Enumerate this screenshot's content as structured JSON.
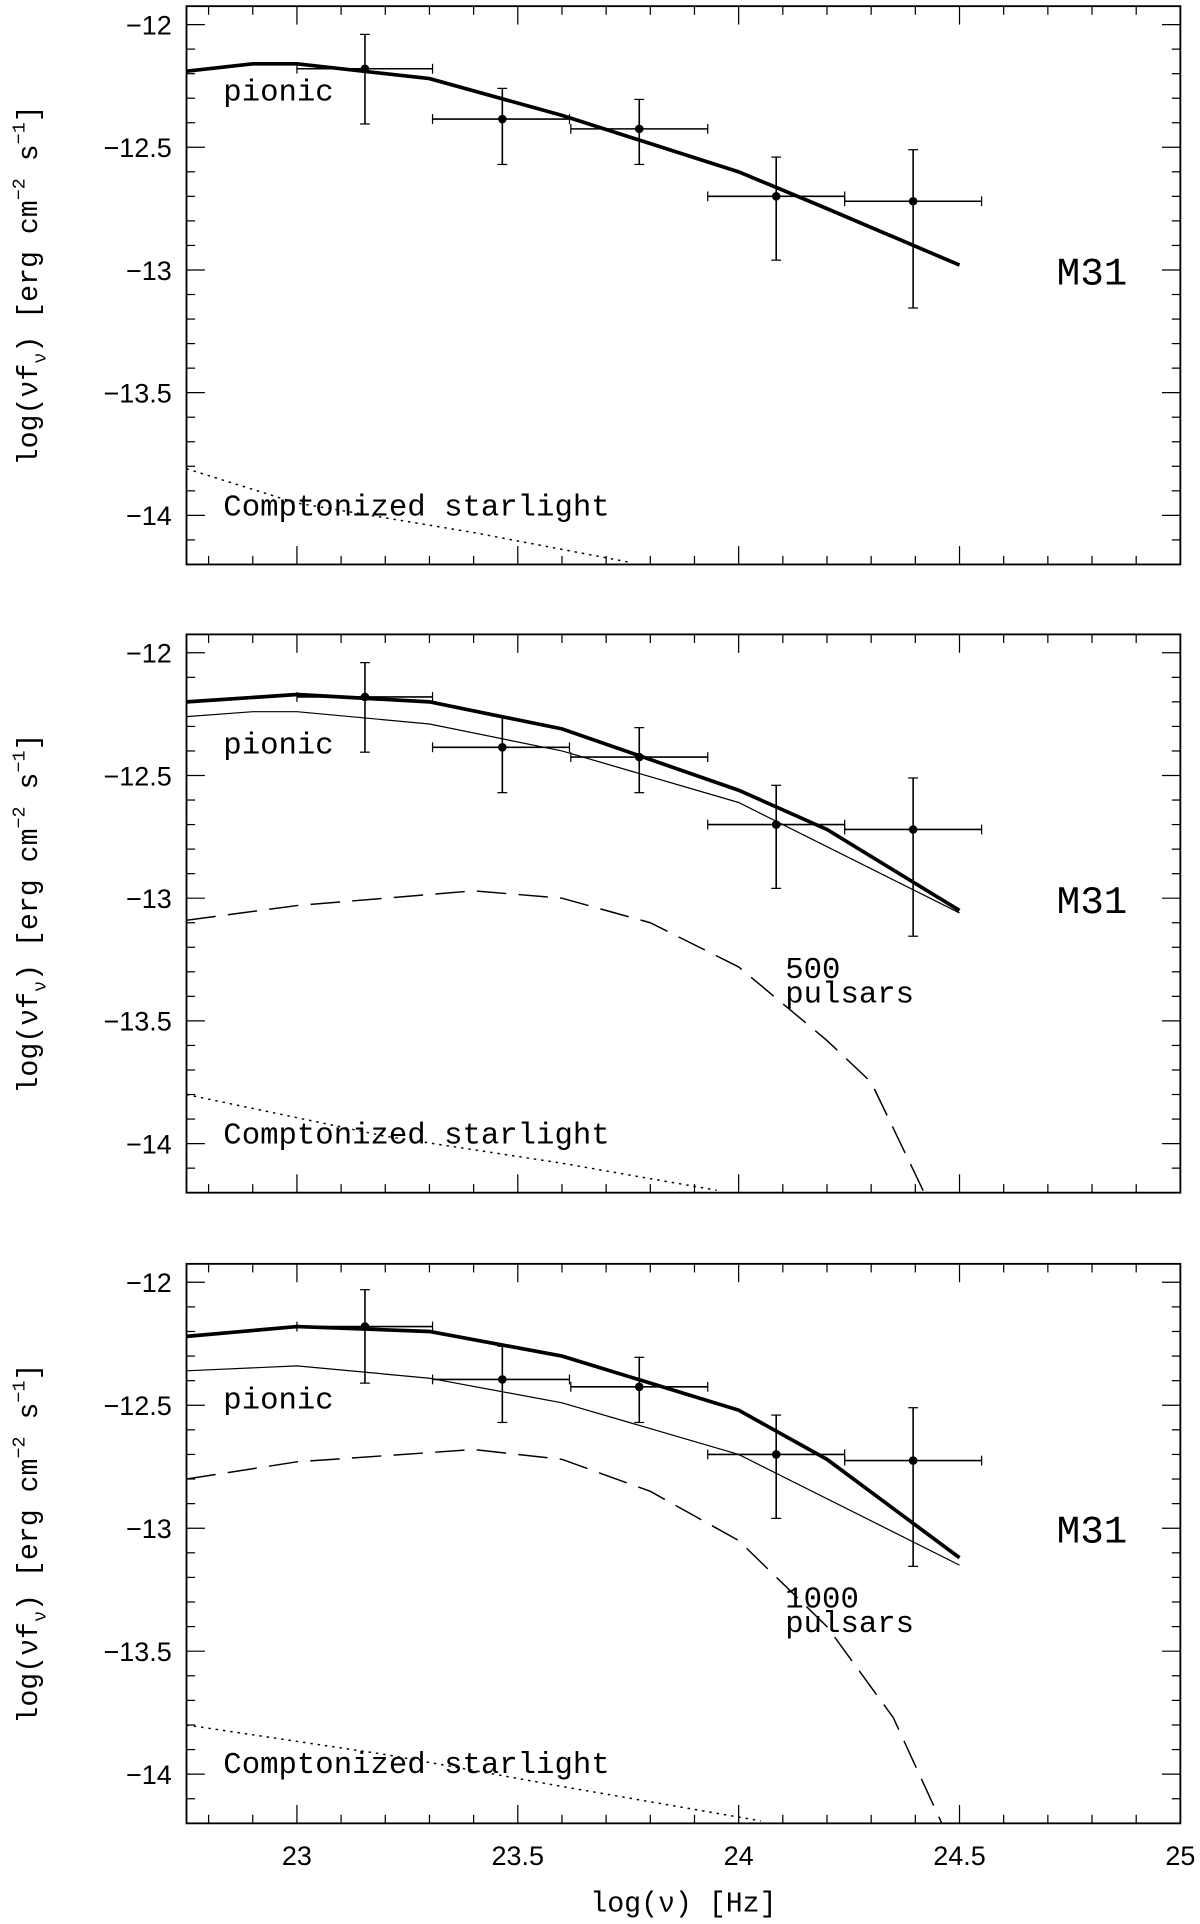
{
  "chart_data": [
    {
      "type": "line",
      "xlim": [
        22.75,
        25
      ],
      "ylim": [
        -14.2,
        -11.925
      ],
      "xticks": [
        23,
        23.5,
        24,
        24.5,
        25
      ],
      "xminorticks": [
        22.8,
        22.9,
        23.1,
        23.2,
        23.3,
        23.4,
        23.6,
        23.7,
        23.8,
        23.9,
        24.1,
        24.2,
        24.3,
        24.4,
        24.6,
        24.7,
        24.8,
        24.9
      ],
      "yticks": [
        {
          "value": -12,
          "label": "−12"
        },
        {
          "value": -12.5,
          "label": "−12.5"
        },
        {
          "value": -13,
          "label": "−13"
        },
        {
          "value": -13.5,
          "label": "−13.5"
        },
        {
          "value": -14,
          "label": "−14"
        }
      ],
      "yminorticks": [
        -12.1,
        -12.2,
        -12.3,
        -12.4,
        -12.6,
        -12.7,
        -12.8,
        -12.9,
        -13.1,
        -13.2,
        -13.3,
        -13.4,
        -13.6,
        -13.7,
        -13.8,
        -13.9,
        -14.1
      ],
      "ylabel": [
        "log(νf",
        "ν",
        ") [erg cm",
        "−2",
        " s",
        "−1",
        "]"
      ],
      "labels": [
        "pionic",
        "Comptonized starlight",
        "M31"
      ],
      "series": [
        {
          "style": "thick",
          "x": [
            22.75,
            22.9,
            23.0,
            23.3,
            23.6,
            24.0,
            24.2,
            24.5
          ],
          "values": [
            -12.19,
            -12.16,
            -12.16,
            -12.22,
            -12.37,
            -12.6,
            -12.75,
            -12.98
          ]
        },
        {
          "style": "dotted",
          "x": [
            22.75,
            23.0,
            23.4,
            23.75
          ],
          "values": [
            -13.81,
            -13.95,
            -14.07,
            -14.19
          ]
        }
      ],
      "points": {
        "x": [
          23.154,
          23.465,
          23.775,
          24.085,
          24.395
        ],
        "values": [
          -12.18,
          -12.385,
          -12.425,
          -12.7,
          -12.72
        ],
        "x_low": [
          23.0,
          23.307,
          23.62,
          23.93,
          24.24
        ],
        "x_high": [
          23.307,
          23.617,
          23.93,
          24.24,
          24.55
        ],
        "y_low": [
          -12.405,
          -12.57,
          -12.57,
          -12.96,
          -13.155
        ],
        "y_high": [
          -12.04,
          -12.26,
          -12.305,
          -12.54,
          -12.51
        ]
      }
    },
    {
      "type": "line",
      "xlim": [
        22.75,
        25
      ],
      "ylim": [
        -14.2,
        -11.925
      ],
      "xticks": [
        23,
        23.5,
        24,
        24.5,
        25
      ],
      "xminorticks": [
        22.8,
        22.9,
        23.1,
        23.2,
        23.3,
        23.4,
        23.6,
        23.7,
        23.8,
        23.9,
        24.1,
        24.2,
        24.3,
        24.4,
        24.6,
        24.7,
        24.8,
        24.9
      ],
      "yticks": [
        {
          "value": -12,
          "label": "−12"
        },
        {
          "value": -12.5,
          "label": "−12.5"
        },
        {
          "value": -13,
          "label": "−13"
        },
        {
          "value": -13.5,
          "label": "−13.5"
        },
        {
          "value": -14,
          "label": "−14"
        }
      ],
      "yminorticks": [
        -12.1,
        -12.2,
        -12.3,
        -12.4,
        -12.6,
        -12.7,
        -12.8,
        -12.9,
        -13.1,
        -13.2,
        -13.3,
        -13.4,
        -13.6,
        -13.7,
        -13.8,
        -13.9,
        -14.1
      ],
      "ylabel": [
        "log(νf",
        "ν",
        ") [erg cm",
        "−2",
        " s",
        "−1",
        "]"
      ],
      "labels": [
        "pionic",
        "Comptonized starlight",
        "M31"
      ],
      "pulsar_label": [
        "500",
        "pulsars"
      ],
      "series": [
        {
          "style": "thick",
          "x": [
            22.75,
            23.0,
            23.3,
            23.6,
            24.0,
            24.2,
            24.5
          ],
          "values": [
            -12.2,
            -12.17,
            -12.2,
            -12.31,
            -12.56,
            -12.72,
            -13.05
          ]
        },
        {
          "style": "thin",
          "x": [
            22.75,
            22.9,
            23.0,
            23.3,
            23.6,
            24.0,
            24.5
          ],
          "values": [
            -12.26,
            -12.24,
            -12.24,
            -12.29,
            -12.4,
            -12.61,
            -13.06
          ]
        },
        {
          "style": "dashed",
          "x": [
            22.75,
            23.0,
            23.4,
            23.6,
            23.8,
            24.0,
            24.2,
            24.3,
            24.42
          ],
          "values": [
            -13.09,
            -13.03,
            -12.97,
            -13.0,
            -13.1,
            -13.28,
            -13.58,
            -13.75,
            -14.2
          ]
        },
        {
          "style": "dotted",
          "x": [
            22.75,
            23.2,
            23.6,
            23.95
          ],
          "values": [
            -13.8,
            -13.97,
            -14.08,
            -14.19
          ]
        }
      ],
      "points": {
        "x": [
          23.154,
          23.465,
          23.775,
          24.085,
          24.395
        ],
        "values": [
          -12.18,
          -12.385,
          -12.425,
          -12.7,
          -12.72
        ],
        "x_low": [
          23.0,
          23.307,
          23.62,
          23.93,
          24.24
        ],
        "x_high": [
          23.307,
          23.617,
          23.93,
          24.24,
          24.55
        ],
        "y_low": [
          -12.405,
          -12.57,
          -12.57,
          -12.96,
          -13.155
        ],
        "y_high": [
          -12.04,
          -12.26,
          -12.305,
          -12.54,
          -12.51
        ]
      }
    },
    {
      "type": "line",
      "xlim": [
        22.75,
        25
      ],
      "ylim": [
        -14.2,
        -11.925
      ],
      "xticks": [
        23,
        23.5,
        24,
        24.5,
        25
      ],
      "xminorticks": [
        22.8,
        22.9,
        23.1,
        23.2,
        23.3,
        23.4,
        23.6,
        23.7,
        23.8,
        23.9,
        24.1,
        24.2,
        24.3,
        24.4,
        24.6,
        24.7,
        24.8,
        24.9
      ],
      "yticks": [
        {
          "value": -12,
          "label": "−12"
        },
        {
          "value": -12.5,
          "label": "−12.5"
        },
        {
          "value": -13,
          "label": "−13"
        },
        {
          "value": -13.5,
          "label": "−13.5"
        },
        {
          "value": -14,
          "label": "−14"
        }
      ],
      "yminorticks": [
        -12.1,
        -12.2,
        -12.3,
        -12.4,
        -12.6,
        -12.7,
        -12.8,
        -12.9,
        -13.1,
        -13.2,
        -13.3,
        -13.4,
        -13.6,
        -13.7,
        -13.8,
        -13.9,
        -14.1
      ],
      "ylabel": [
        "log(νf",
        "ν",
        ") [erg cm",
        "−2",
        " s",
        "−1",
        "]"
      ],
      "xlabel": "log(ν) [Hz]",
      "labels": [
        "pionic",
        "Comptonized starlight",
        "M31"
      ],
      "pulsar_label": [
        "1000",
        "pulsars"
      ],
      "series": [
        {
          "style": "thick",
          "x": [
            22.75,
            23.0,
            23.3,
            23.6,
            24.0,
            24.2,
            24.5
          ],
          "values": [
            -12.22,
            -12.18,
            -12.2,
            -12.3,
            -12.52,
            -12.72,
            -13.12
          ]
        },
        {
          "style": "thin",
          "x": [
            22.75,
            23.0,
            23.3,
            23.6,
            24.0,
            24.5
          ],
          "values": [
            -12.36,
            -12.34,
            -12.39,
            -12.49,
            -12.7,
            -13.15
          ]
        },
        {
          "style": "dashed",
          "x": [
            22.75,
            23.0,
            23.4,
            23.6,
            23.8,
            24.0,
            24.2,
            24.35,
            24.46
          ],
          "values": [
            -12.8,
            -12.73,
            -12.68,
            -12.72,
            -12.85,
            -13.05,
            -13.4,
            -13.77,
            -14.2
          ]
        },
        {
          "style": "dotted",
          "x": [
            22.75,
            23.2,
            23.6,
            24.05
          ],
          "values": [
            -13.8,
            -13.92,
            -14.05,
            -14.19
          ]
        }
      ],
      "points": {
        "x": [
          23.154,
          23.465,
          23.775,
          24.085,
          24.395
        ],
        "values": [
          -12.18,
          -12.395,
          -12.425,
          -12.7,
          -12.725
        ],
        "x_low": [
          23.0,
          23.307,
          23.62,
          23.93,
          24.24
        ],
        "x_high": [
          23.307,
          23.617,
          23.93,
          24.24,
          24.55
        ],
        "y_low": [
          -12.41,
          -12.57,
          -12.57,
          -12.96,
          -13.155
        ],
        "y_high": [
          -12.03,
          -12.26,
          -12.305,
          -12.54,
          -12.51
        ]
      }
    }
  ]
}
